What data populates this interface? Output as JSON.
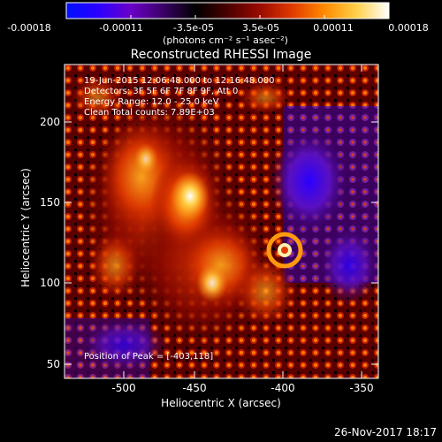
{
  "colorbar": {
    "tick_labels": [
      "-0.00018",
      "-0.00011",
      "-3.5e-05",
      "3.5e-05",
      "0.00011",
      "0.00018"
    ],
    "unit_label": "(photons cm⁻² s⁻¹ asec⁻²)",
    "colors": [
      "#0010ff",
      "#2b00ff",
      "#6b00c8",
      "#3a0068",
      "#000000",
      "#4a0000",
      "#9a0a00",
      "#e03a00",
      "#ff8a00",
      "#ffd04a",
      "#ffffff"
    ]
  },
  "image": {
    "title": "Reconstructed RHESSI Image",
    "annotations": [
      "19-Jun-2015 12:06:48.000 to 12:16:48.000",
      "Detectors: 3F 5F 6F 7F 8F 9F, Att 0",
      "Energy Range: 12.0 - 25.0 keV",
      "Clean    Total counts: 7.89E+03"
    ],
    "peak_label": "Position of Peak = [-403,118]"
  },
  "axes": {
    "xlabel": "Heliocentric X (arcsec)",
    "ylabel": "Heliocentric Y (arcsec)",
    "x_ticks": [
      "-500",
      "-450",
      "-400",
      "-350"
    ],
    "y_ticks": [
      "50",
      "100",
      "150",
      "200"
    ]
  },
  "footer": {
    "date": "26-Nov-2017 18:17"
  }
}
